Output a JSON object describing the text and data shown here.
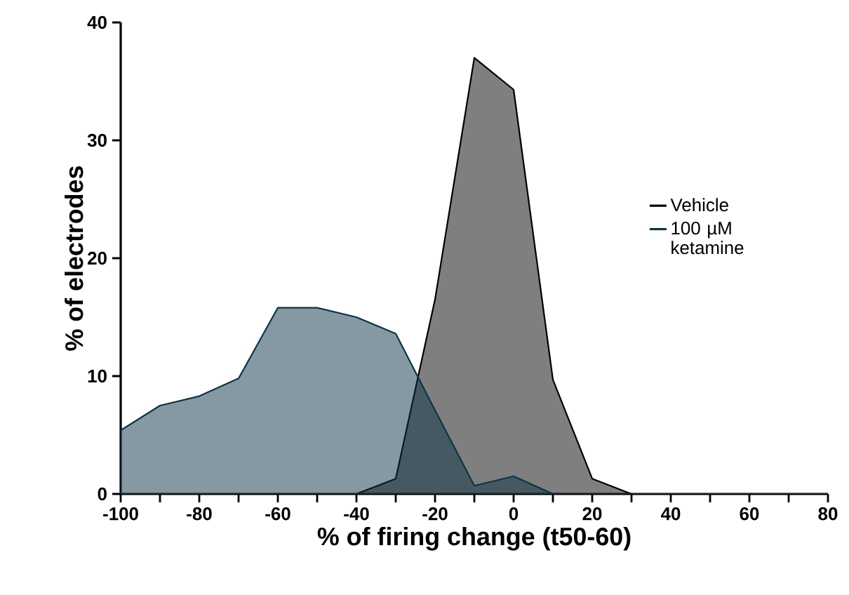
{
  "chart_data": {
    "type": "area",
    "xlabel": "% of firing change (t50-60)",
    "ylabel": "% of electrodes",
    "series": [
      {
        "name": "Vehicle",
        "color": "#000000",
        "x": [
          -40,
          -30,
          -20,
          -10,
          0,
          10,
          20,
          30,
          40,
          50,
          60,
          70,
          80
        ],
        "values": [
          0,
          1.3,
          16.5,
          37,
          34.3,
          9.7,
          1.3,
          0,
          0,
          0,
          0,
          0,
          0
        ]
      },
      {
        "name": "100 µM ketamine",
        "color": "#0d3447",
        "x": [
          -100,
          -90,
          -80,
          -70,
          -60,
          -50,
          -40,
          -30,
          -20,
          -10,
          0,
          10,
          20,
          30,
          40,
          50,
          60,
          70,
          80
        ],
        "values": [
          5.4,
          7.5,
          8.3,
          9.8,
          15.8,
          15.8,
          15.0,
          13.6,
          7.1,
          0.7,
          1.5,
          0,
          0,
          0,
          0,
          0,
          0,
          0,
          0
        ]
      }
    ],
    "xlim": [
      -100,
      80
    ],
    "ylim": [
      0,
      40
    ],
    "xticks": [
      -100,
      -80,
      -60,
      -40,
      -20,
      0,
      20,
      40,
      60,
      80
    ],
    "yticks": [
      0,
      10,
      20,
      30,
      40
    ],
    "grid": false,
    "legend": "right",
    "marker": "none"
  }
}
